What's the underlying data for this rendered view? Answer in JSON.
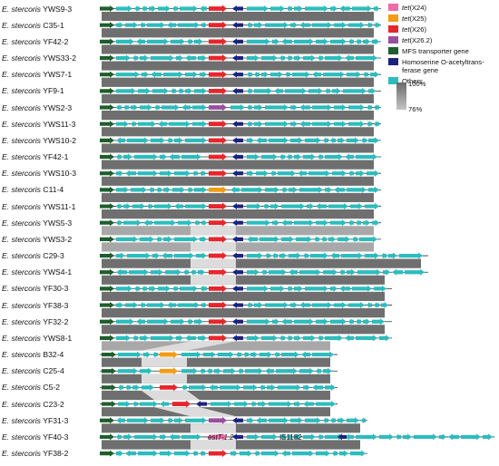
{
  "diagram": {
    "species": "E. stercoris",
    "strains": [
      "YWS9-3",
      "C35-1",
      "YF42-2",
      "YWS33-2",
      "YWS7-1",
      "YF9-1",
      "YWS2-3",
      "YWS11-3",
      "YWS10-2",
      "YF42-1",
      "YWS10-3",
      "C11-4",
      "YWS11-1",
      "YWS5-3",
      "YWS3-2",
      "C29-3",
      "YWS4-1",
      "YF30-3",
      "YF38-3",
      "YF32-2",
      "YWS8-1",
      "B32-4",
      "C25-4",
      "C5-2",
      "C23-2",
      "YF31-3",
      "YF40-3",
      "YF38-2"
    ],
    "tet_variant": [
      "X26",
      "X26",
      "X26",
      "X26",
      "X26",
      "X26",
      "X26.2",
      "X26",
      "X26",
      "X26",
      "X26",
      "X25",
      "X26",
      "X26",
      "X26",
      "X26",
      "X26",
      "X26",
      "X26",
      "X26",
      "X26",
      "X25",
      "X25",
      "X26",
      "X26",
      "X26.2",
      "X24",
      "X26"
    ],
    "has_homoserine": [
      true,
      true,
      true,
      true,
      true,
      true,
      false,
      true,
      true,
      true,
      true,
      false,
      true,
      true,
      true,
      true,
      true,
      true,
      true,
      true,
      true,
      false,
      false,
      false,
      true,
      true,
      true,
      false
    ],
    "annotations": {
      "estT": "estT-1.2",
      "is": "IS1182"
    }
  },
  "legend": {
    "items": [
      {
        "label": "tet(X24)",
        "italic_prefix": "tet",
        "suffix": "(X24)",
        "color": "#f26aa8"
      },
      {
        "label": "tet(X25)",
        "italic_prefix": "tet",
        "suffix": "(X25)",
        "color": "#f39c12"
      },
      {
        "label": "tet(X26)",
        "italic_prefix": "tet",
        "suffix": "(X26)",
        "color": "#e8262a"
      },
      {
        "label": "tet(X26.2)",
        "italic_prefix": "tet",
        "suffix": "(X26.2)",
        "color": "#9b4ea0"
      },
      {
        "label": "MFS transporter gene",
        "italic_prefix": "",
        "suffix": "MFS transporter gene",
        "color": "#1e5e2c"
      },
      {
        "label": "Homoserine O-acetyltrans-ferase gene",
        "italic_prefix": "",
        "suffix": "Homoserine O-acetyltrans-ferase gene",
        "color": "#1a237e"
      },
      {
        "label": "Others",
        "italic_prefix": "",
        "suffix": "Others",
        "color": "#2bbdbd"
      }
    ],
    "scale_max": "100%",
    "scale_min": "76%"
  },
  "colors": {
    "others": "#2bbdbd",
    "mfs": "#1e5e2c",
    "homoserine": "#1a237e",
    "tet": {
      "X24": "#f26aa8",
      "X25": "#f39c12",
      "X26": "#e8262a",
      "X26.2": "#9b4ea0"
    },
    "backbone": "#333333",
    "homology": "#6f6f6f",
    "homology_light": "#a8a8a8"
  }
}
